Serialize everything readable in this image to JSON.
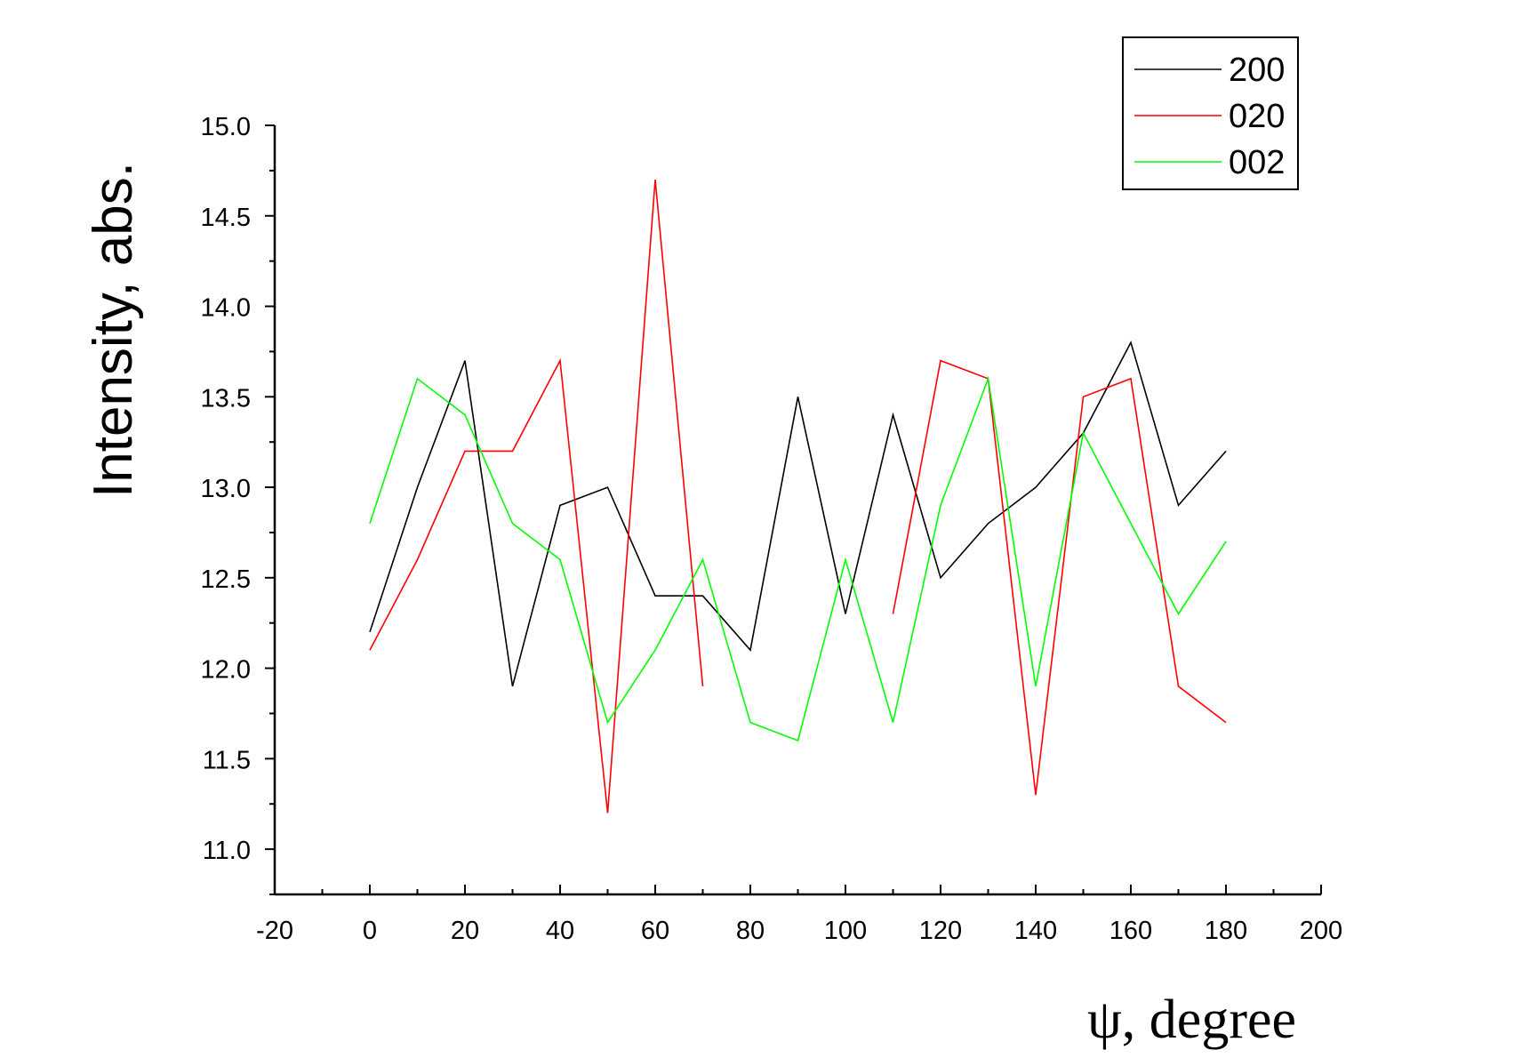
{
  "chart_data": {
    "type": "line",
    "xlabel": "ψ, degree",
    "ylabel": "Intensity, abs.",
    "xlim": [
      -20,
      200
    ],
    "ylim": [
      10.75,
      15.0
    ],
    "x_ticks": [
      -20,
      0,
      20,
      40,
      60,
      80,
      100,
      120,
      140,
      160,
      180,
      200
    ],
    "x_tick_labels": [
      "-20",
      "0",
      "20",
      "40",
      "60",
      "80",
      "100",
      "120",
      "140",
      "160",
      "180",
      "200"
    ],
    "y_ticks": [
      11.0,
      11.5,
      12.0,
      12.5,
      13.0,
      13.5,
      14.0,
      14.5,
      15.0
    ],
    "y_tick_labels": [
      "11.0",
      "11.5",
      "12.0",
      "12.5",
      "13.0",
      "13.5",
      "14.0",
      "14.5",
      "15.0"
    ],
    "grid": false,
    "legend_position": "top-right",
    "x": [
      0,
      10,
      20,
      30,
      40,
      50,
      60,
      70,
      80,
      90,
      100,
      110,
      120,
      130,
      140,
      150,
      160,
      170,
      180
    ],
    "series": [
      {
        "name": "200",
        "color": "#000000",
        "values": [
          12.2,
          13.0,
          13.7,
          11.9,
          12.9,
          13.0,
          12.4,
          12.4,
          12.1,
          13.5,
          12.3,
          13.4,
          12.5,
          12.8,
          13.0,
          13.3,
          13.8,
          12.9,
          13.2
        ]
      },
      {
        "name": "020",
        "color": "#ff0000",
        "values": [
          12.1,
          12.6,
          13.2,
          13.2,
          13.7,
          11.2,
          14.7,
          11.9,
          null,
          null,
          null,
          12.3,
          13.7,
          13.6,
          11.3,
          13.5,
          13.6,
          11.9,
          11.7
        ]
      },
      {
        "name": "002",
        "color": "#00ff00",
        "values": [
          12.8,
          13.6,
          13.4,
          12.8,
          12.6,
          11.7,
          12.1,
          12.6,
          11.7,
          11.6,
          12.6,
          11.7,
          12.9,
          13.6,
          11.9,
          13.3,
          12.8,
          12.3,
          12.7
        ]
      }
    ]
  }
}
